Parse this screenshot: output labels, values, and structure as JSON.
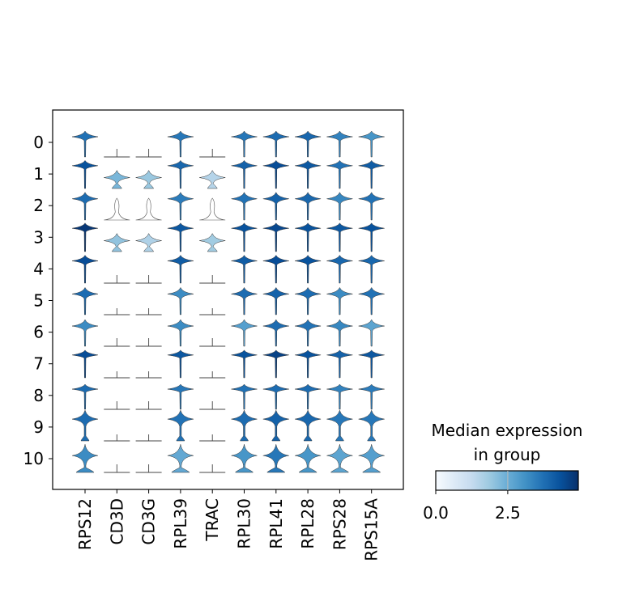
{
  "chart_data": {
    "type": "stacked-violin",
    "title": "",
    "genes": [
      "RPS12",
      "CD3D",
      "CD3G",
      "RPL39",
      "TRAC",
      "RPL30",
      "RPL41",
      "RPL28",
      "RPS28",
      "RPS15A"
    ],
    "groups": [
      "0",
      "1",
      "2",
      "3",
      "4",
      "5",
      "6",
      "7",
      "8",
      "9",
      "10"
    ],
    "median_expression": [
      [
        3.7,
        0,
        0,
        3.6,
        0,
        3.6,
        3.8,
        3.9,
        3.4,
        3.0
      ],
      [
        4.3,
        2.3,
        1.9,
        3.9,
        1.5,
        4.0,
        4.4,
        4.2,
        3.7,
        4.1
      ],
      [
        3.8,
        0,
        0,
        3.5,
        0,
        3.7,
        4.0,
        3.9,
        3.3,
        3.7
      ],
      [
        4.8,
        2.0,
        1.6,
        4.2,
        1.8,
        4.3,
        4.5,
        4.3,
        4.2,
        4.3
      ],
      [
        4.4,
        0,
        0,
        4.1,
        0,
        4.1,
        4.4,
        4.3,
        3.9,
        3.9
      ],
      [
        3.8,
        0,
        0,
        3.2,
        0,
        3.8,
        4.0,
        3.8,
        3.2,
        3.7
      ],
      [
        3.2,
        0,
        0,
        3.2,
        0,
        2.8,
        3.8,
        3.7,
        3.3,
        2.7
      ],
      [
        4.4,
        0,
        0,
        4.2,
        0,
        4.3,
        4.6,
        4.3,
        4.0,
        4.2
      ],
      [
        3.8,
        0,
        0,
        3.6,
        0,
        3.7,
        3.8,
        3.8,
        3.4,
        3.5
      ],
      [
        3.8,
        0,
        0,
        3.7,
        0,
        3.8,
        4.0,
        3.9,
        3.6,
        3.6
      ],
      [
        3.2,
        0,
        0,
        2.6,
        0,
        3.0,
        3.6,
        3.0,
        2.7,
        2.8
      ]
    ],
    "colorbar": {
      "title_line1": "Median expression",
      "title_line2": "in group",
      "ticks": [
        "0.0",
        "2.5"
      ],
      "tick_values": [
        0,
        2.5
      ],
      "vmin": 0,
      "vmax": 4.95,
      "colormap": "Blues"
    }
  }
}
